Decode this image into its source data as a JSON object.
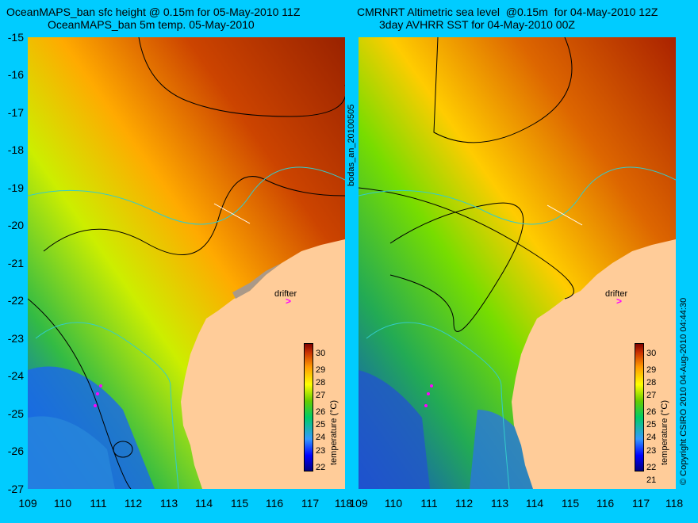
{
  "left_panel": {
    "title_line1": "OceanMAPS_ban sfc height @ 0.15m for 05-May-2010 11Z",
    "title_line2": "OceanMAPS_ban 5m temp. 05-May-2010",
    "colorbar_ticks": [
      "30",
      "29",
      "28",
      "27",
      "26",
      "25",
      "24",
      "23",
      "22"
    ],
    "colorbar_label": "temperature (°C)",
    "drifter_label": "drifter"
  },
  "right_panel": {
    "title_line1": "CMRNRT Altimetric sea level  @0.15m  for 04-May-2010 12Z",
    "title_line2": "3day AVHRR SST for 04-May-2010 00Z",
    "colorbar_ticks": [
      "30",
      "29",
      "28",
      "27",
      "26",
      "25",
      "24",
      "23",
      "22",
      "21"
    ],
    "colorbar_label": "temperature (°C)",
    "drifter_label": "drifter"
  },
  "y_axis_labels": [
    "-15",
    "-16",
    "-17",
    "-18",
    "-19",
    "-20",
    "-21",
    "-22",
    "-23",
    "-24",
    "-25",
    "-26",
    "-27"
  ],
  "x_axis_labels": [
    "109",
    "110",
    "111",
    "112",
    "113",
    "114",
    "115",
    "116",
    "117",
    "118"
  ],
  "side_label": "bodas_an_20100505",
  "copyright": "© Copyright CSIRO 2010   04-Aug-2010 04:44:30",
  "colors": {
    "background": "#00ccff",
    "land": "#ffcc99",
    "marker": "#ff00ff",
    "contour": "#000000",
    "coast": "#33cccc"
  }
}
